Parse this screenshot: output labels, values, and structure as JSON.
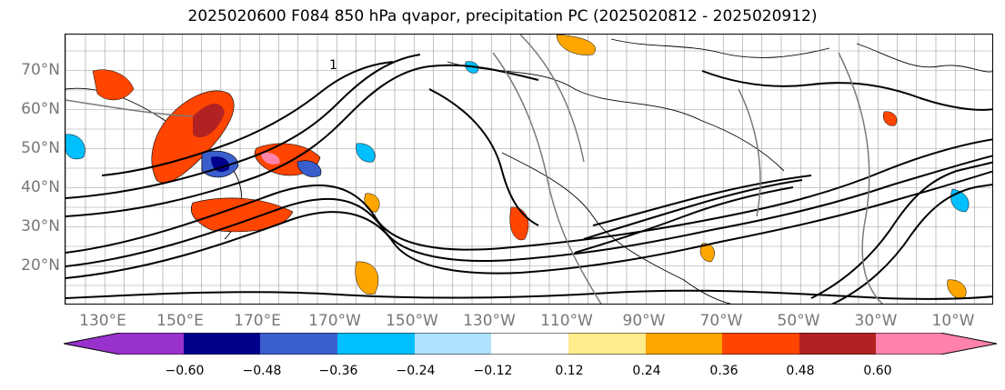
{
  "title": "2025020600 F084 850 hPa qvapor, precipitation PC (2025020812 - 2025020912)",
  "lat_labels": [
    "70°N",
    "60°N",
    "50°N",
    "40°N",
    "30°N",
    "20°N"
  ],
  "lon_labels": [
    "130°E",
    "150°E",
    "170°E",
    "170°W",
    "150°W",
    "130°W",
    "110°W",
    "90°W",
    "70°W",
    "50°W",
    "30°W",
    "10°W"
  ],
  "contour_label": "1",
  "colorbar": {
    "tick_labels": [
      "−0.60",
      "−0.48",
      "−0.36",
      "−0.24",
      "−0.12",
      "0.12",
      "0.24",
      "0.36",
      "0.48",
      "0.60"
    ],
    "colors": [
      "#9932cc",
      "#00008b",
      "#3a5fcd",
      "#00bfff",
      "#b0e2ff",
      "#ffffff",
      "#ffec8b",
      "#ffa500",
      "#ff4500",
      "#b22222",
      "#ff82ab"
    ]
  }
}
